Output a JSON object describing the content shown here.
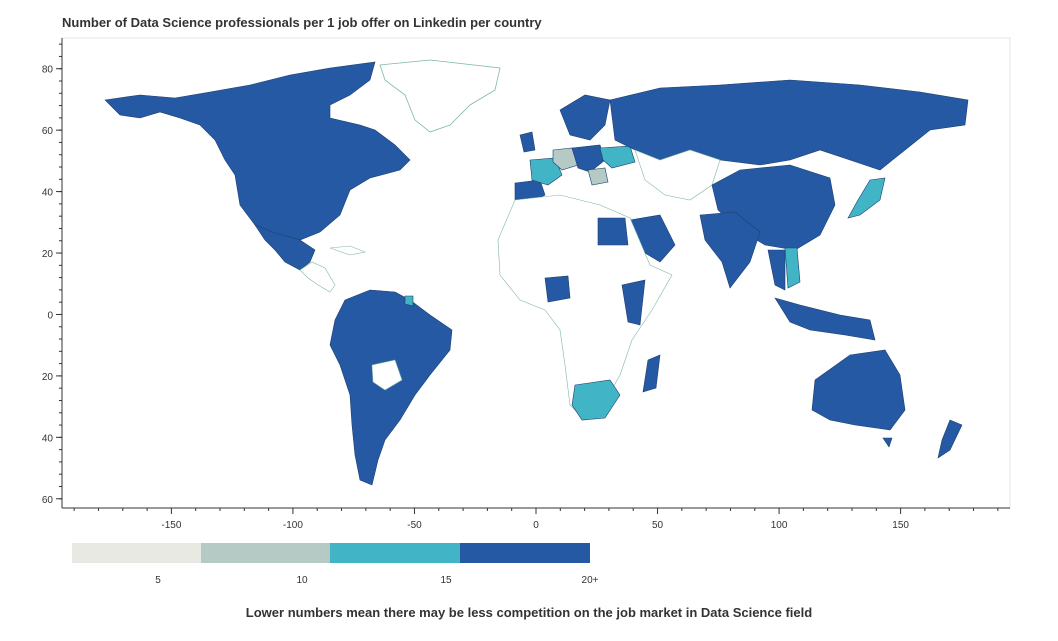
{
  "title": "Number of Data Science professionals per 1 job offer on Linkedin per country",
  "footnote": "Lower numbers mean there may be less competition on the job market in Data Science field",
  "axes": {
    "x_ticks": [
      -150,
      -100,
      -50,
      0,
      50,
      100,
      150
    ],
    "y_ticks": [
      80,
      60,
      40,
      20,
      0,
      -20,
      -40,
      -60
    ],
    "y_tick_labels": [
      "80",
      "60",
      "40",
      "20",
      "0",
      "20",
      "40",
      "60"
    ],
    "x_range": [
      -195,
      195
    ],
    "y_range": [
      -63,
      90
    ]
  },
  "colors": {
    "bin_5": "#e9e9e4",
    "bin_10": "#b5c9c5",
    "bin_15": "#41b4c5",
    "bin_20": "#2559a3",
    "no_data": "#ffffff",
    "land_stroke": "#7fb7a7"
  },
  "legend": {
    "labels": [
      "5",
      "10",
      "15",
      "20+"
    ]
  },
  "chart_data": {
    "type": "choropleth",
    "title": "Number of Data Science professionals per 1 job offer on Linkedin per country",
    "legend_bins": [
      "5",
      "10",
      "15",
      "20+"
    ],
    "x_ticks": [
      -150,
      -100,
      -50,
      0,
      50,
      100,
      150
    ],
    "y_ticks": [
      80,
      60,
      40,
      20,
      0,
      -20,
      -40,
      -60
    ],
    "regions": [
      {
        "name": "Canada",
        "bin": "20+"
      },
      {
        "name": "United States",
        "bin": "20+"
      },
      {
        "name": "Mexico",
        "bin": "20+"
      },
      {
        "name": "Brazil",
        "bin": "20+"
      },
      {
        "name": "Argentina",
        "bin": "20+"
      },
      {
        "name": "Chile",
        "bin": "20+"
      },
      {
        "name": "Colombia",
        "bin": "20+"
      },
      {
        "name": "Peru",
        "bin": "20+"
      },
      {
        "name": "French Guiana",
        "bin": "15"
      },
      {
        "name": "Russia",
        "bin": "20+"
      },
      {
        "name": "China",
        "bin": "20+"
      },
      {
        "name": "India",
        "bin": "20+"
      },
      {
        "name": "Australia",
        "bin": "20+"
      },
      {
        "name": "New Zealand",
        "bin": "20+"
      },
      {
        "name": "Indonesia",
        "bin": "20+"
      },
      {
        "name": "Japan",
        "bin": "15"
      },
      {
        "name": "Vietnam",
        "bin": "15"
      },
      {
        "name": "South Africa",
        "bin": "15"
      },
      {
        "name": "France",
        "bin": "15"
      },
      {
        "name": "Germany",
        "bin": "10"
      },
      {
        "name": "Ukraine",
        "bin": "15"
      },
      {
        "name": "Spain",
        "bin": "20+"
      },
      {
        "name": "Saudi Arabia",
        "bin": "20+"
      },
      {
        "name": "Egypt",
        "bin": "20+"
      },
      {
        "name": "Nigeria",
        "bin": "20+"
      },
      {
        "name": "Kenya",
        "bin": "20+"
      },
      {
        "name": "Madagascar",
        "bin": "20+"
      }
    ]
  }
}
